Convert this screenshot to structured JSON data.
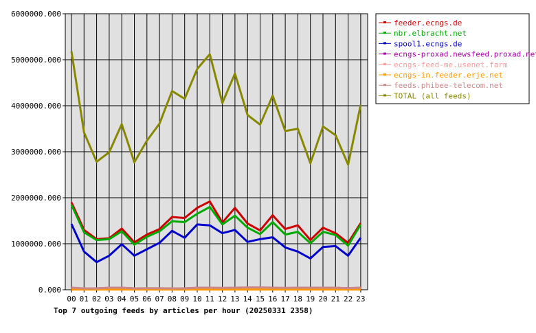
{
  "chart_data": {
    "type": "line",
    "title": "Top 7 outgoing feeds by articles per hour (20250331 2358)",
    "xlabel": "",
    "ylabel": "",
    "categories": [
      "00",
      "01",
      "02",
      "03",
      "04",
      "05",
      "06",
      "07",
      "08",
      "09",
      "10",
      "11",
      "12",
      "13",
      "14",
      "15",
      "16",
      "17",
      "18",
      "19",
      "20",
      "21",
      "22",
      "23"
    ],
    "ylim": [
      0,
      6000000
    ],
    "yticks": [
      0,
      1000000,
      2000000,
      3000000,
      4000000,
      5000000,
      6000000
    ],
    "ytick_labels": [
      "0.000",
      "1000000.000",
      "2000000.000",
      "3000000.000",
      "4000000.000",
      "5000000.000",
      "6000000.000"
    ],
    "grid": true,
    "legend_position": "right",
    "plot_background": "#e0e0e0",
    "series": [
      {
        "name": "feeder.ecngs.de",
        "color": "#cc0000",
        "values": [
          1900000,
          1300000,
          1100000,
          1120000,
          1330000,
          1030000,
          1200000,
          1320000,
          1580000,
          1560000,
          1780000,
          1920000,
          1460000,
          1780000,
          1440000,
          1290000,
          1620000,
          1320000,
          1400000,
          1080000,
          1350000,
          1230000,
          1020000,
          1450000
        ]
      },
      {
        "name": "nbr.elbracht.net",
        "color": "#00aa00",
        "values": [
          1850000,
          1250000,
          1080000,
          1100000,
          1270000,
          980000,
          1150000,
          1270000,
          1490000,
          1470000,
          1650000,
          1800000,
          1420000,
          1610000,
          1350000,
          1210000,
          1470000,
          1200000,
          1260000,
          1010000,
          1260000,
          1190000,
          960000,
          1420000
        ]
      },
      {
        "name": "spool1.ecngs.de",
        "color": "#0000cc",
        "values": [
          1430000,
          830000,
          600000,
          740000,
          990000,
          740000,
          880000,
          1020000,
          1280000,
          1130000,
          1420000,
          1400000,
          1230000,
          1300000,
          1040000,
          1100000,
          1140000,
          920000,
          830000,
          680000,
          930000,
          950000,
          740000,
          1130000
        ]
      },
      {
        "name": "ecngs-proxad.newsfeed.proxad.net",
        "color": "#aa00aa",
        "values": [
          30000,
          25000,
          30000,
          40000,
          40000,
          30000,
          30000,
          30000,
          30000,
          30000,
          40000,
          40000,
          35000,
          40000,
          45000,
          45000,
          40000,
          35000,
          40000,
          40000,
          40000,
          40000,
          35000,
          40000
        ]
      },
      {
        "name": "ecngs-feed-me.usenet.farm",
        "color": "#ff9999",
        "values": [
          40000,
          25000,
          20000,
          30000,
          30000,
          20000,
          20000,
          25000,
          20000,
          20000,
          30000,
          35000,
          30000,
          30000,
          30000,
          30000,
          30000,
          25000,
          30000,
          30000,
          30000,
          25000,
          20000,
          30000
        ]
      },
      {
        "name": "ecngs-in.feeder.erje.net",
        "color": "#ff9900",
        "values": [
          5000,
          5000,
          5000,
          5000,
          5000,
          5000,
          5000,
          5000,
          5000,
          5000,
          5000,
          5000,
          5000,
          5000,
          5000,
          5000,
          5000,
          5000,
          5000,
          5000,
          5000,
          5000,
          5000,
          5000
        ]
      },
      {
        "name": "feeds.phibee-telecom.net",
        "color": "#cc8888",
        "values": [
          45000,
          30000,
          30000,
          45000,
          45000,
          30000,
          35000,
          35000,
          30000,
          30000,
          45000,
          45000,
          40000,
          45000,
          50000,
          50000,
          45000,
          40000,
          45000,
          45000,
          45000,
          45000,
          35000,
          45000
        ]
      },
      {
        "name": "TOTAL (all feeds)",
        "color": "#888800",
        "values": [
          5180000,
          3420000,
          2780000,
          2990000,
          3600000,
          2770000,
          3240000,
          3610000,
          4320000,
          4150000,
          4800000,
          5120000,
          4060000,
          4700000,
          3800000,
          3590000,
          4220000,
          3450000,
          3500000,
          2750000,
          3550000,
          3360000,
          2720000,
          4020000
        ]
      }
    ]
  }
}
